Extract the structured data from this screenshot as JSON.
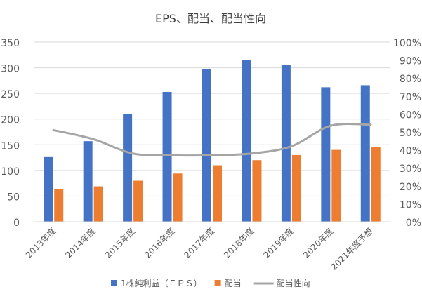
{
  "chart_data": {
    "type": "bar",
    "title": "EPS、配当、配当性向",
    "categories": [
      "2013年度",
      "2014年度",
      "2015年度",
      "2016年度",
      "2017年度",
      "2018年度",
      "2019年度",
      "2020年度",
      "2021年度予想"
    ],
    "series": [
      {
        "name": "1株純利益（ＥＰＳ）",
        "type": "bar",
        "axis": "left",
        "color": "#4472C4",
        "values": [
          126,
          157,
          210,
          253,
          298,
          315,
          306,
          262,
          266
        ]
      },
      {
        "name": "配当",
        "type": "bar",
        "axis": "left",
        "color": "#ED7D31",
        "values": [
          64,
          69,
          80,
          94,
          110,
          120,
          130,
          140,
          145
        ]
      },
      {
        "name": "配当性向",
        "type": "line",
        "axis": "right",
        "color": "#A5A5A5",
        "values": [
          0.51,
          0.46,
          0.38,
          0.37,
          0.37,
          0.38,
          0.42,
          0.535,
          0.54
        ]
      }
    ],
    "ylim": [
      0,
      350
    ],
    "yticks": [
      "0",
      "50",
      "100",
      "150",
      "200",
      "250",
      "300",
      "350"
    ],
    "y2lim": [
      0,
      1
    ],
    "y2ticks": [
      "0%",
      "10%",
      "20%",
      "30%",
      "40%",
      "50%",
      "60%",
      "70%",
      "80%",
      "90%",
      "100%"
    ],
    "grid": true,
    "legend_position": "bottom"
  }
}
